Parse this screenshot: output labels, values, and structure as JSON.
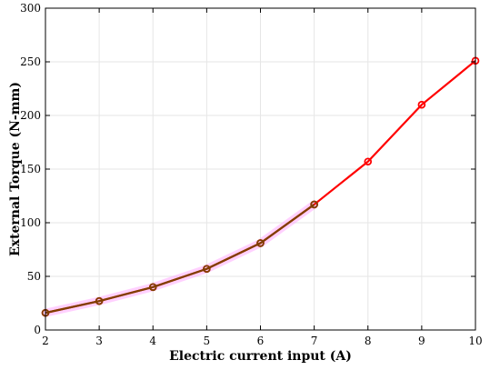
{
  "chart_data": {
    "type": "line",
    "xlabel": "Electric current input (A)",
    "ylabel": "External Torque (N-mm)",
    "xlim": [
      2,
      10
    ],
    "ylim": [
      0,
      300
    ],
    "xticks": [
      2,
      3,
      4,
      5,
      6,
      7,
      8,
      9,
      10
    ],
    "yticks": [
      0,
      50,
      100,
      150,
      200,
      250,
      300
    ],
    "grid": true,
    "legend": "none",
    "series": [
      {
        "color": "#ff0000",
        "marker": "circle",
        "x": [
          2,
          3,
          4,
          5,
          6,
          7,
          8,
          9,
          10
        ],
        "y": [
          16,
          27,
          40,
          57,
          81,
          117,
          157,
          210,
          251
        ]
      },
      {
        "color": "#7f3f00",
        "marker": "circle",
        "x": [
          2,
          3,
          4,
          5,
          6,
          7
        ],
        "y": [
          16,
          27,
          40,
          57,
          81,
          117
        ]
      }
    ],
    "colors": {
      "band": "#ff99ff",
      "grid": "#e6e6e6",
      "axis": "#000000"
    }
  }
}
